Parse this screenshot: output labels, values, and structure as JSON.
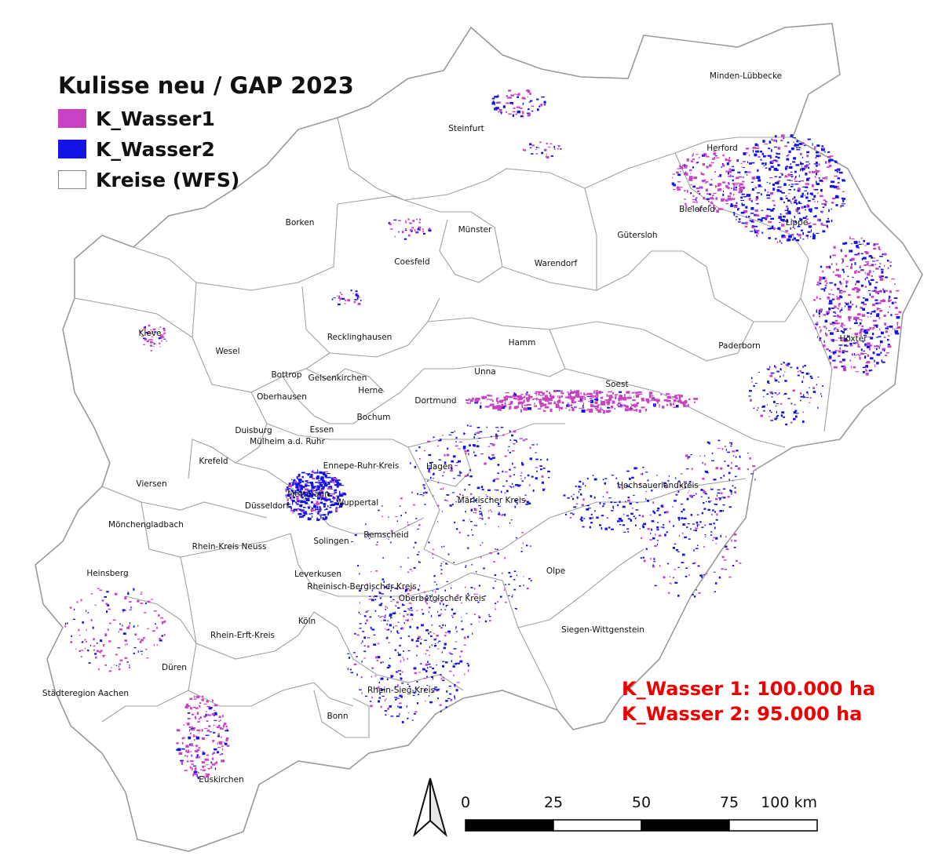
{
  "legend": {
    "title": "Kulisse neu / GAP 2023",
    "items": [
      {
        "label": "K_Wasser1",
        "color": "#c942c4"
      },
      {
        "label": "K_Wasser2",
        "color": "#1414e6"
      },
      {
        "label": "Kreise (WFS)",
        "color": "#ffffff"
      }
    ]
  },
  "stats": {
    "line1": "K_Wasser 1: 100.000 ha",
    "line2": "K_Wasser 2: 95.000 ha",
    "color": "#ee0000"
  },
  "scale_bar": {
    "ticks": [
      "0",
      "25",
      "50",
      "75",
      "100 km"
    ]
  },
  "districts": [
    "Minden-Lübbecke",
    "Steinfurt",
    "Herford",
    "Bielefeld",
    "Lippe",
    "Borken",
    "Münster",
    "Gütersloh",
    "Coesfeld",
    "Warendorf",
    "Kleve",
    "Recklinghausen",
    "Hamm",
    "Höxter",
    "Paderborn",
    "Wesel",
    "Bottrop",
    "Gelsenkirchen",
    "Unna",
    "Herne",
    "Soest",
    "Oberhausen",
    "Dortmund",
    "Bochum",
    "Essen",
    "Duisburg",
    "Mülheim a.d. Ruhr",
    "Krefeld",
    "Ennepe-Ruhr-Kreis",
    "Hagen",
    "Viersen",
    "Hochsauerlandkreis",
    "Mettmann",
    "Wuppertal",
    "Märkischer Kreis",
    "Düsseldorf",
    "Mönchengladbach",
    "Remscheid",
    "Solingen",
    "Rhein-Kreis Neuss",
    "Olpe",
    "Heinsberg",
    "Leverkusen",
    "Rheinisch-Bergischer Kreis",
    "Oberbergischer Kreis",
    "Köln",
    "Siegen-Wittgenstein",
    "Rhein-Erft-Kreis",
    "Düren",
    "Städteregion Aachen",
    "Rhein-Sieg-Kreis",
    "Bonn",
    "Euskirchen"
  ]
}
